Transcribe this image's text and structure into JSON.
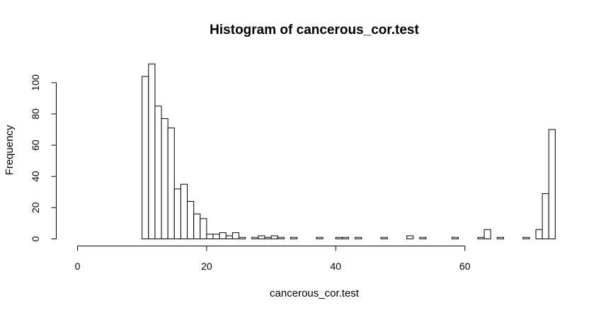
{
  "chart_data": {
    "type": "bar",
    "title": "Histogram of cancerous_cor.test",
    "xlabel": "cancerous_cor.test",
    "ylabel": "Frequency",
    "xlim": [
      0,
      73
    ],
    "ylim": [
      0,
      112
    ],
    "xticks": [
      0,
      20,
      40,
      60
    ],
    "yticks": [
      0,
      20,
      40,
      60,
      80,
      100
    ],
    "bin_width": 1,
    "bin_start": 0,
    "grid": false,
    "values": [
      0,
      0,
      0,
      0,
      0,
      0,
      0,
      0,
      0,
      0,
      104,
      112,
      85,
      77,
      71,
      32,
      35,
      24,
      16,
      13,
      3,
      3,
      4,
      2,
      4,
      1,
      0,
      1,
      2,
      1,
      2,
      1,
      0,
      1,
      0,
      0,
      0,
      1,
      0,
      0,
      1,
      1,
      0,
      1,
      0,
      0,
      0,
      1,
      0,
      0,
      0,
      2,
      0,
      1,
      0,
      0,
      0,
      0,
      1,
      0,
      0,
      0,
      1,
      6,
      0,
      1,
      0,
      0,
      0,
      1,
      0,
      6,
      29,
      70
    ]
  }
}
